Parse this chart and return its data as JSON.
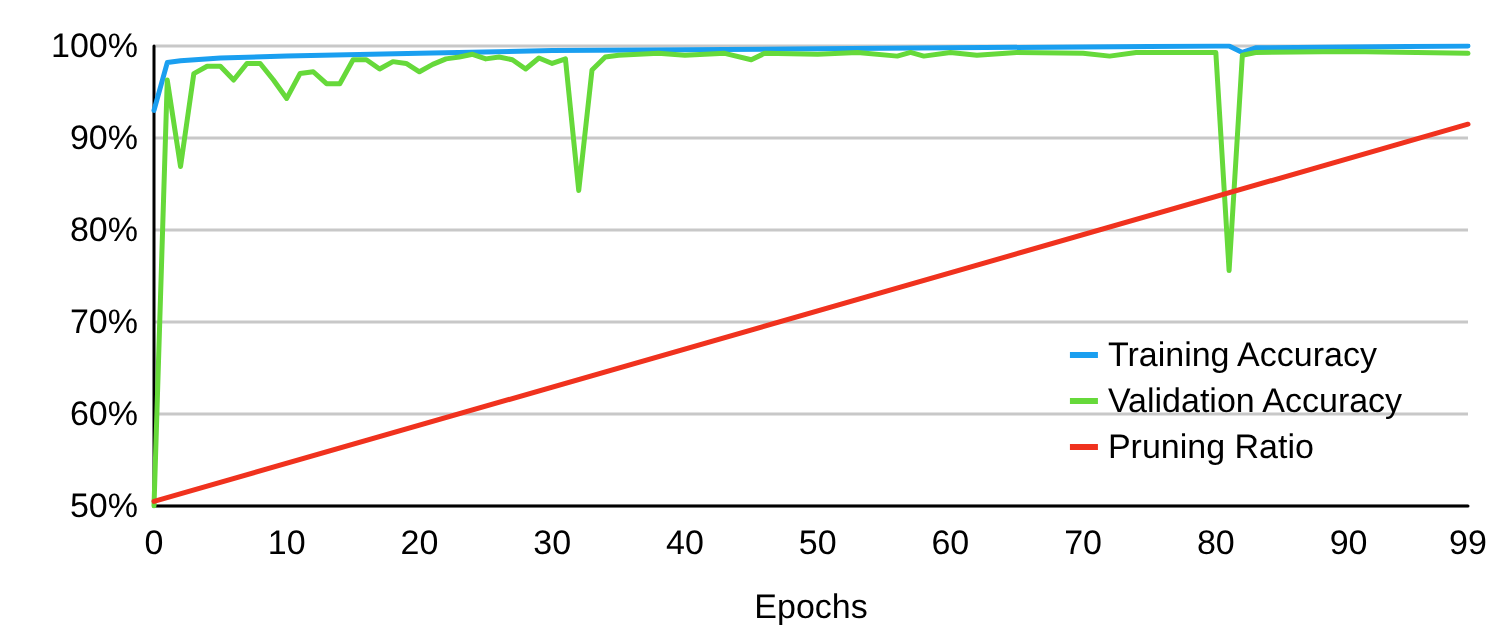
{
  "chart_data": {
    "type": "line",
    "xlabel": "Epochs",
    "xlim": [
      0,
      99
    ],
    "xticks": [
      0,
      10,
      20,
      30,
      40,
      50,
      60,
      70,
      80,
      90,
      99
    ],
    "ylim": [
      50,
      100
    ],
    "yticks": [
      {
        "value": 50,
        "label": "50%"
      },
      {
        "value": 60,
        "label": "60%"
      },
      {
        "value": 70,
        "label": "70%"
      },
      {
        "value": 80,
        "label": "80%"
      },
      {
        "value": 90,
        "label": "90%"
      },
      {
        "value": 100,
        "label": "100%"
      }
    ],
    "grid": "y",
    "legend": "bottom right",
    "marker": "none",
    "line_style": "solid",
    "series": [
      {
        "name": "Training Accuracy",
        "color": "#1a9ff0",
        "x": [
          0,
          1,
          2,
          5,
          10,
          20,
          30,
          40,
          50,
          60,
          70,
          80,
          81,
          82,
          83,
          90,
          99
        ],
        "values": [
          93,
          98.2,
          98.4,
          98.7,
          98.9,
          99.2,
          99.5,
          99.6,
          99.7,
          99.8,
          99.9,
          100,
          100,
          99.3,
          99.8,
          99.9,
          100
        ]
      },
      {
        "name": "Validation Accuracy",
        "color": "#66d93a",
        "x": [
          0,
          1,
          2,
          3,
          4,
          5,
          6,
          7,
          8,
          9,
          10,
          11,
          12,
          13,
          14,
          15,
          16,
          17,
          18,
          19,
          20,
          21,
          22,
          23,
          24,
          25,
          26,
          27,
          28,
          29,
          30,
          31,
          32,
          33,
          34,
          35,
          38,
          40,
          43,
          45,
          46,
          50,
          53,
          56,
          57,
          58,
          60,
          62,
          65,
          70,
          72,
          74,
          80,
          81,
          82,
          83,
          90,
          99
        ],
        "values": [
          50,
          96.3,
          86.9,
          97.0,
          97.8,
          97.8,
          96.3,
          98.1,
          98.1,
          96.3,
          94.3,
          97.0,
          97.2,
          95.9,
          95.9,
          98.5,
          98.5,
          97.5,
          98.3,
          98.1,
          97.2,
          98.0,
          98.6,
          98.8,
          99.1,
          98.6,
          98.8,
          98.5,
          97.5,
          98.7,
          98.1,
          98.6,
          84.3,
          97.4,
          98.8,
          99.0,
          99.2,
          99.0,
          99.2,
          98.5,
          99.2,
          99.1,
          99.3,
          98.9,
          99.3,
          98.9,
          99.3,
          99.0,
          99.3,
          99.2,
          98.9,
          99.3,
          99.3,
          75.6,
          99.0,
          99.3,
          99.4,
          99.2
        ]
      },
      {
        "name": "Pruning Ratio",
        "color": "#f0321e",
        "x": [
          0,
          99
        ],
        "values": [
          50.5,
          91.5
        ]
      }
    ]
  }
}
